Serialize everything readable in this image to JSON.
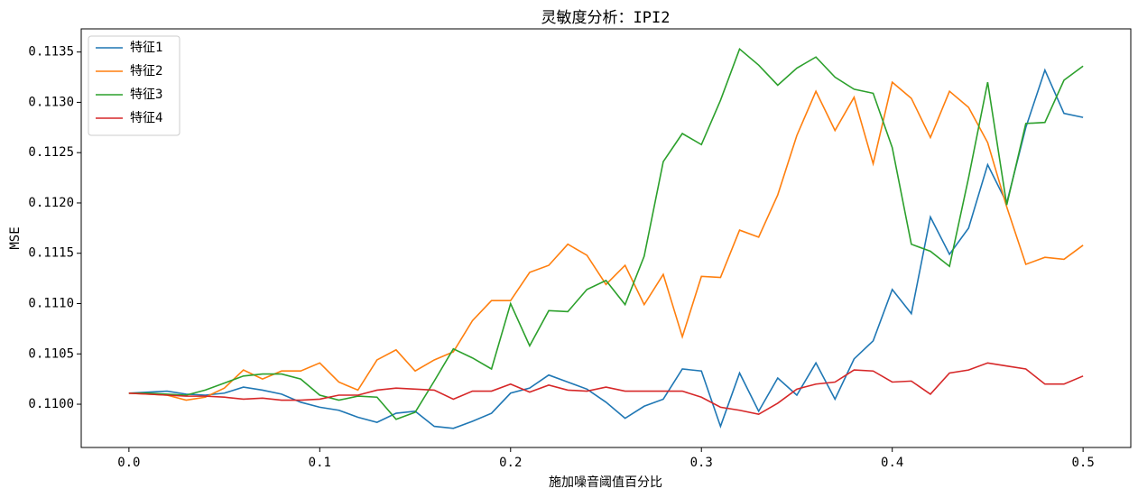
{
  "chart_data": {
    "type": "line",
    "title": "灵敏度分析：IPI2",
    "xlabel": "施加噪音阈值百分比",
    "ylabel": "MSE",
    "x": [
      0,
      0.01,
      0.02,
      0.03,
      0.04,
      0.05,
      0.06,
      0.07,
      0.08,
      0.09,
      0.1,
      0.11,
      0.12,
      0.13,
      0.14,
      0.15,
      0.16,
      0.17,
      0.18,
      0.19,
      0.2,
      0.21,
      0.22,
      0.23,
      0.24,
      0.25,
      0.26,
      0.27,
      0.28,
      0.29,
      0.3,
      0.31,
      0.32,
      0.33,
      0.34,
      0.35,
      0.36,
      0.37,
      0.38,
      0.39,
      0.4,
      0.41,
      0.42,
      0.43,
      0.44,
      0.45,
      0.46,
      0.47,
      0.48,
      0.49,
      0.5
    ],
    "series": [
      {
        "name": "特征1",
        "color": "#1f77b4",
        "values": [
          0.11011,
          0.11012,
          0.11013,
          0.1101,
          0.11009,
          0.11011,
          0.11017,
          0.11014,
          0.1101,
          0.11002,
          0.10997,
          0.10994,
          0.10987,
          0.10982,
          0.10991,
          0.10993,
          0.10978,
          0.10976,
          0.10983,
          0.10991,
          0.11011,
          0.11016,
          0.11029,
          0.11022,
          0.11015,
          0.11002,
          0.10986,
          0.10998,
          0.11005,
          0.11035,
          0.11033,
          0.10978,
          0.11031,
          0.10993,
          0.11026,
          0.11009,
          0.11041,
          0.11005,
          0.11045,
          0.11063,
          0.11114,
          0.1109,
          0.11186,
          0.11149,
          0.11175,
          0.11238,
          0.112,
          0.11275,
          0.11332,
          0.11289,
          0.11285
        ]
      },
      {
        "name": "特征2",
        "color": "#ff7f0e",
        "values": [
          0.11011,
          0.1101,
          0.11009,
          0.11004,
          0.11007,
          0.11016,
          0.11034,
          0.11025,
          0.11033,
          0.11033,
          0.11041,
          0.11022,
          0.11014,
          0.11044,
          0.11054,
          0.11033,
          0.11044,
          0.11052,
          0.11083,
          0.11103,
          0.11103,
          0.11131,
          0.11138,
          0.11159,
          0.11148,
          0.11119,
          0.11138,
          0.11099,
          0.11129,
          0.11067,
          0.11127,
          0.11126,
          0.11173,
          0.11166,
          0.11208,
          0.11267,
          0.11311,
          0.11272,
          0.11305,
          0.11239,
          0.1132,
          0.11304,
          0.11265,
          0.11311,
          0.11295,
          0.1126,
          0.11196,
          0.11139,
          0.11146,
          0.11144,
          0.11158
        ]
      },
      {
        "name": "特征3",
        "color": "#2ca02c",
        "values": [
          0.11011,
          0.11011,
          0.1101,
          0.11009,
          0.11014,
          0.11021,
          0.11028,
          0.1103,
          0.1103,
          0.11025,
          0.11009,
          0.11004,
          0.11008,
          0.11007,
          0.10985,
          0.10992,
          0.11023,
          0.11055,
          0.11046,
          0.11035,
          0.111,
          0.11058,
          0.11093,
          0.11092,
          0.11114,
          0.11123,
          0.11099,
          0.11147,
          0.11241,
          0.11269,
          0.11258,
          0.11302,
          0.11353,
          0.11337,
          0.11317,
          0.11334,
          0.11345,
          0.11325,
          0.11313,
          0.11309,
          0.11255,
          0.11159,
          0.11152,
          0.11137,
          0.11225,
          0.1132,
          0.11198,
          0.11279,
          0.1128,
          0.11322,
          0.11336
        ]
      },
      {
        "name": "特征4",
        "color": "#d62728",
        "values": [
          0.11011,
          0.1101,
          0.11009,
          0.11008,
          0.11008,
          0.11007,
          0.11005,
          0.11006,
          0.11004,
          0.11004,
          0.11005,
          0.11009,
          0.11009,
          0.11014,
          0.11016,
          0.11015,
          0.11014,
          0.11005,
          0.11013,
          0.11013,
          0.1102,
          0.11012,
          0.11019,
          0.11014,
          0.11013,
          0.11017,
          0.11013,
          0.11013,
          0.11013,
          0.11013,
          0.11007,
          0.10997,
          0.10994,
          0.1099,
          0.11001,
          0.11015,
          0.1102,
          0.11022,
          0.11034,
          0.11033,
          0.11022,
          0.11023,
          0.1101,
          0.11031,
          0.11034,
          0.11041,
          0.11038,
          0.11035,
          0.1102,
          0.1102,
          0.11028
        ]
      }
    ],
    "xlim": [
      -0.025,
      0.525
    ],
    "ylim": [
      0.10957,
      0.11373
    ],
    "xticks": [
      {
        "value": 0,
        "label": "0.0"
      },
      0.1,
      0.2,
      0.3,
      0.4,
      0.5
    ],
    "yticks": [
      {
        "value": 0.11,
        "label": "0.1100"
      },
      0.1105,
      {
        "value": 0.111,
        "label": "0.1110"
      },
      0.1115,
      {
        "value": 0.112,
        "label": "0.1120"
      },
      0.1125,
      {
        "value": 0.113,
        "label": "0.1130"
      },
      0.1135
    ],
    "legend": "upper left"
  }
}
